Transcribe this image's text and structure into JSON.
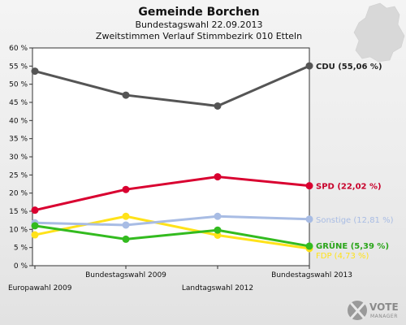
{
  "brand": {
    "vote": "VOTE",
    "manager": "MANAGER"
  },
  "chart_data": {
    "type": "line",
    "title": "Gemeinde Borchen",
    "subtitle_lines": [
      "Bundestagswahl 22.09.2013",
      "Zweitstimmen Verlauf Stimmbezirk 010 Etteln"
    ],
    "categories": [
      "Europawahl 2009",
      "Bundestagswahl 2009",
      "Landtagswahl 2012",
      "Bundestagswahl 2013"
    ],
    "ylim": [
      0,
      60
    ],
    "yticks": [
      0,
      5,
      10,
      15,
      20,
      25,
      30,
      35,
      40,
      45,
      50,
      55,
      60
    ],
    "ytick_labels": [
      "0 %",
      "5 %",
      "10 %",
      "15 %",
      "20 %",
      "25 %",
      "30 %",
      "35 %",
      "40 %",
      "45 %",
      "50 %",
      "55 %",
      "60 %"
    ],
    "grid": false,
    "series": [
      {
        "name": "CDU",
        "label": "CDU (55,06 %)",
        "color": "#555555",
        "values": [
          53.6,
          47.0,
          44.0,
          55.06
        ]
      },
      {
        "name": "SPD",
        "label": "SPD (22,02 %)",
        "color": "#d90030",
        "values": [
          15.3,
          21.0,
          24.5,
          22.02
        ]
      },
      {
        "name": "Sonstige",
        "label": "Sonstige (12,81 %)",
        "color": "#a8bce4",
        "values": [
          11.8,
          11.2,
          13.6,
          12.81
        ]
      },
      {
        "name": "FDP",
        "label": "FDP (4,73 %)",
        "color": "#ffe21a",
        "values": [
          8.5,
          13.6,
          8.4,
          4.73
        ]
      },
      {
        "name": "GRÜNE",
        "label": "GRÜNE (5,39 %)",
        "color": "#33bb1f",
        "values": [
          11.0,
          7.3,
          9.8,
          5.39
        ]
      }
    ]
  }
}
